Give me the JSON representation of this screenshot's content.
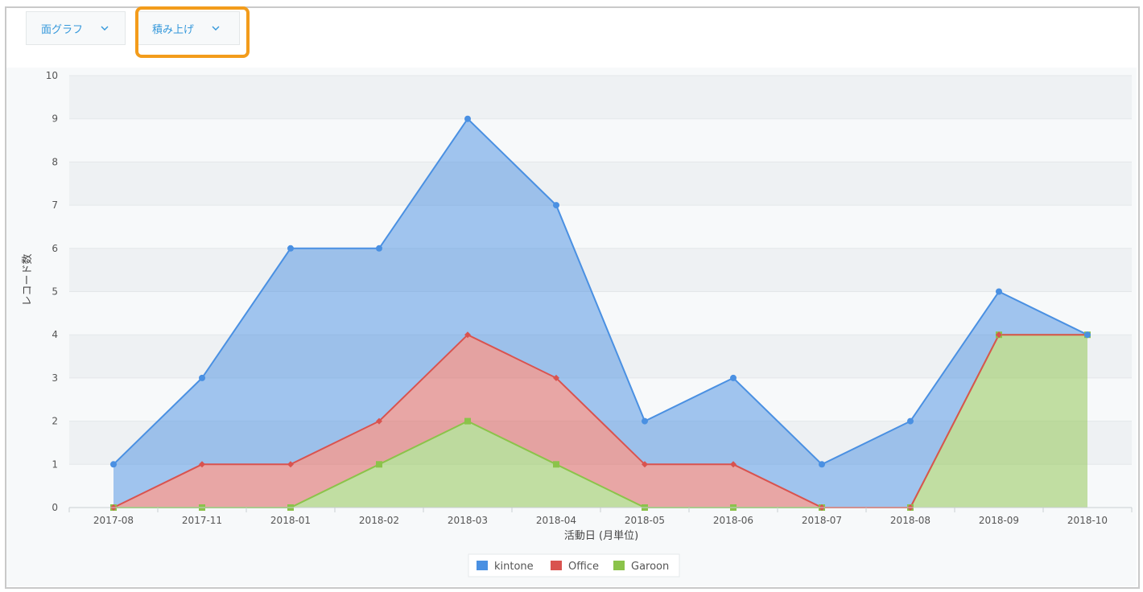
{
  "toolbar": {
    "chart_type_label": "面グラフ",
    "stack_mode_label": "積み上げ"
  },
  "colors": {
    "kintone": "#4a90e2",
    "Office": "#d9534f",
    "Garoon": "#8bc34a",
    "highlight": "#f39c1b",
    "dropdown_text": "#3498db"
  },
  "chart_data": {
    "type": "area",
    "stacked": true,
    "title": "",
    "xlabel": "活動日 (月単位)",
    "ylabel": "レコード数",
    "ylim": [
      0,
      10
    ],
    "yticks": [
      0,
      1,
      2,
      3,
      4,
      5,
      6,
      7,
      8,
      9,
      10
    ],
    "grid": true,
    "legend_position": "bottom-center",
    "categories": [
      "2017-08",
      "2017-11",
      "2018-01",
      "2018-02",
      "2018-03",
      "2018-04",
      "2018-05",
      "2018-06",
      "2018-07",
      "2018-08",
      "2018-09",
      "2018-10"
    ],
    "series": [
      {
        "name": "kintone",
        "values": [
          1,
          2,
          5,
          4,
          5,
          4,
          1,
          2,
          1,
          2,
          1,
          0
        ]
      },
      {
        "name": "Office",
        "values": [
          0,
          1,
          1,
          1,
          2,
          2,
          1,
          1,
          0,
          0,
          0,
          0
        ]
      },
      {
        "name": "Garoon",
        "values": [
          0,
          0,
          0,
          1,
          2,
          1,
          0,
          0,
          0,
          0,
          4,
          4
        ]
      }
    ]
  }
}
